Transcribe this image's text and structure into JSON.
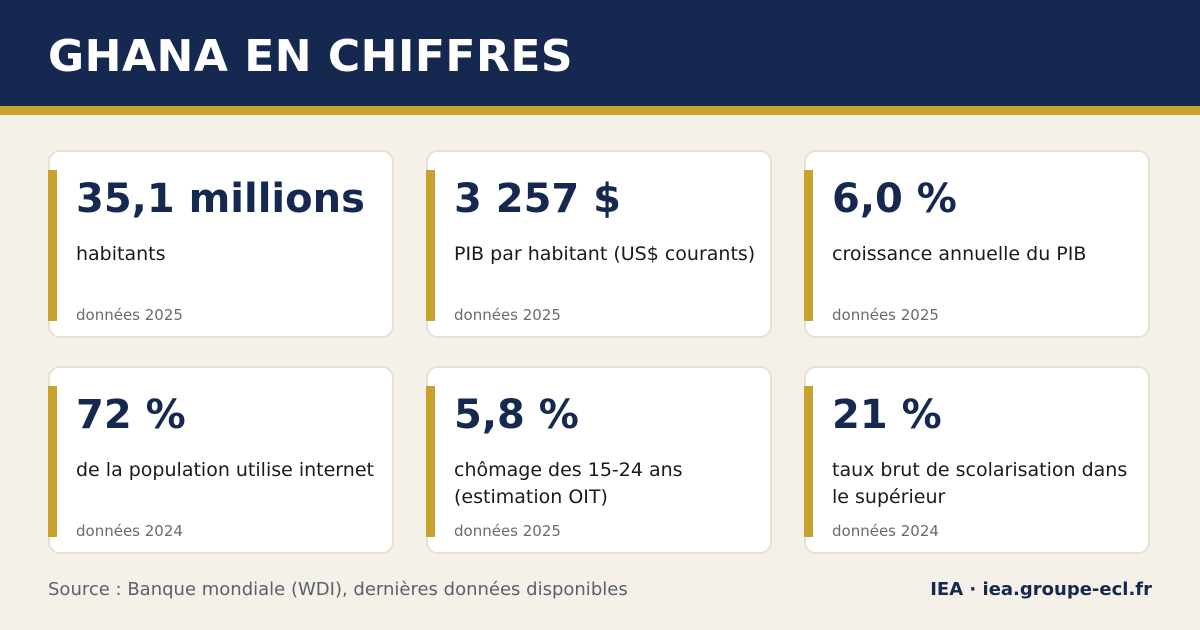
{
  "header": {
    "title": "GHANA EN CHIFFRES"
  },
  "stats": [
    {
      "value": "35,1 millions",
      "label": "habitants",
      "note": "données 2025"
    },
    {
      "value": "3 257 $",
      "label": "PIB par habitant (US$ courants)",
      "note": "données 2025"
    },
    {
      "value": "6,0 %",
      "label": "croissance annuelle du PIB",
      "note": "données 2025"
    },
    {
      "value": "72 %",
      "label": "de la population utilise internet",
      "note": "données 2024"
    },
    {
      "value": "5,8 %",
      "label": "chômage des 15-24 ans (estimation OIT)",
      "note": "données 2025"
    },
    {
      "value": "21 %",
      "label": "taux brut de scolarisation dans le supérieur",
      "note": "données 2024"
    }
  ],
  "footer": {
    "source": "Source : Banque mondiale (WDI), dernières données disponibles",
    "brand": "IEA · iea.groupe-ecl.fr"
  },
  "colors": {
    "navy": "#15284f",
    "gold": "#c9a12d",
    "background": "#f5f1e8"
  }
}
